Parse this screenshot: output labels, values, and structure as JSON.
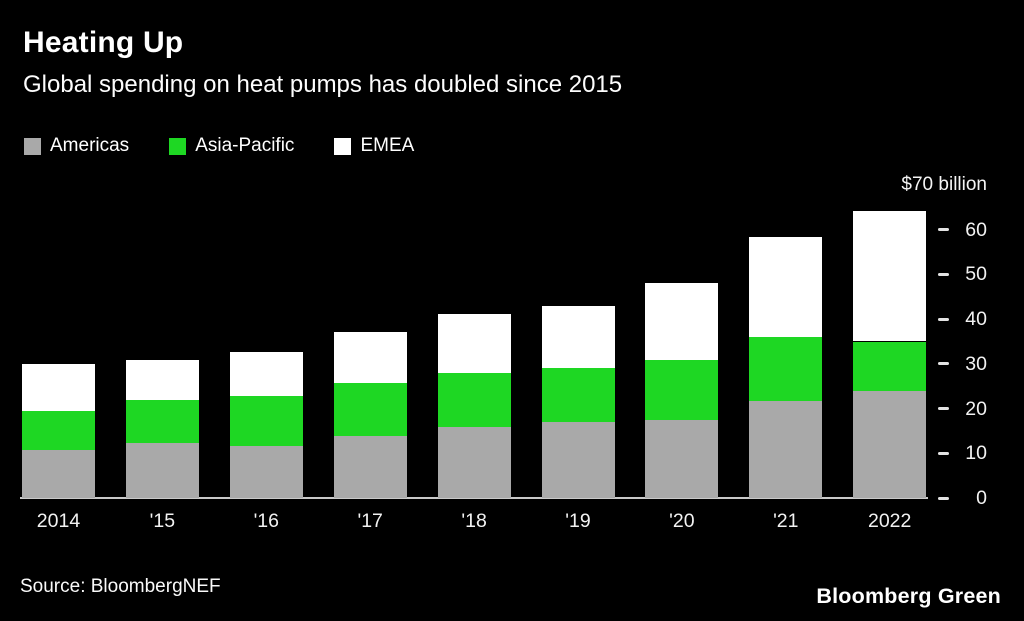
{
  "source": "Source: BloombergNEF",
  "logo": "Bloomberg Green",
  "colors": {
    "background": "#000000",
    "text": "#ffffff",
    "americas": "#a9a9a9",
    "asia_pacific": "#1ed723",
    "emea": "#ffffff",
    "baseline": "#c9c9c9"
  },
  "chart_data": {
    "type": "bar",
    "stacked": true,
    "title": "Heating Up",
    "subtitle": "Global spending on heat pumps has doubled since 2015",
    "unit_label": "$70 billion",
    "categories": [
      "2014",
      "'15",
      "'16",
      "'17",
      "'18",
      "'19",
      "'20",
      "'21",
      "2022"
    ],
    "series": [
      {
        "name": "Americas",
        "color": "#a9a9a9",
        "values": [
          10.8,
          12.4,
          11.7,
          13.9,
          15.9,
          17.0,
          17.5,
          21.8,
          24.0
        ]
      },
      {
        "name": "Asia-Pacific",
        "color": "#1ed723",
        "values": [
          8.7,
          9.5,
          11.1,
          11.8,
          12.1,
          12.0,
          13.4,
          14.3,
          11.0
        ]
      },
      {
        "name": "EMEA",
        "color": "#ffffff",
        "values": [
          10.5,
          9.0,
          9.8,
          11.4,
          13.1,
          14.0,
          17.1,
          22.2,
          29.2
        ]
      }
    ],
    "totals": [
      30.0,
      30.9,
      32.6,
      37.1,
      41.1,
      43.0,
      48.0,
      58.3,
      64.2
    ],
    "xlabel": "",
    "ylabel": "$ billion",
    "ylim": [
      0,
      70
    ],
    "yticks": [
      0,
      10,
      20,
      30,
      40,
      50,
      60
    ],
    "grid": false,
    "legend_position": "top-left"
  }
}
